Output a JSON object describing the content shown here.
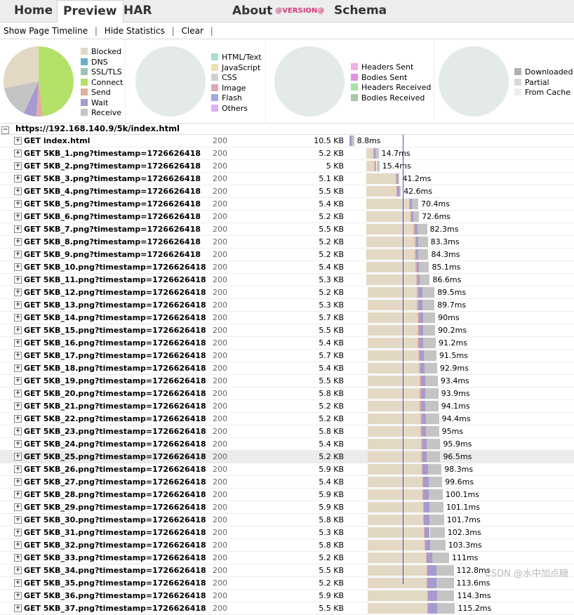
{
  "tabs": {
    "home": "Home",
    "preview": "Preview",
    "har": "HAR",
    "about": "About",
    "version": "@VERSION@",
    "schema": "Schema"
  },
  "toolbar": {
    "timeline": "Show Page Timeline",
    "statistics": "Hide Statistics",
    "clear": "Clear",
    "sep": "|"
  },
  "stats": {
    "timings_legend": [
      "Blocked",
      "DNS",
      "SSL/TLS",
      "Connect",
      "Send",
      "Wait",
      "Receive"
    ],
    "timings_colors": [
      "#e3d8c3",
      "#6ab0c8",
      "#9ec3b4",
      "#b4e168",
      "#e0b0a0",
      "#a89ad0",
      "#c4c4c4"
    ],
    "timings_values": [
      0.28,
      0,
      0,
      0.48,
      0.03,
      0.06,
      0.15
    ],
    "types_legend": [
      "HTML/Text",
      "JavaScript",
      "CSS",
      "Image",
      "Flash",
      "Others"
    ],
    "types_colors": [
      "#a8e0cc",
      "#f0e0b0",
      "#d0d0d0",
      "#e0a8b0",
      "#a0a8e0",
      "#e0b0f0"
    ],
    "headers_legend": [
      "Headers Sent",
      "Bodies Sent",
      "Headers Received",
      "Bodies Received"
    ],
    "headers_colors": [
      "#f4b0e0",
      "#e090e0",
      "#a8e0a8",
      "#a8c8a8"
    ],
    "cache_legend": [
      "Downloaded",
      "Partial",
      "From Cache"
    ],
    "cache_colors": [
      "#b0b0b0",
      "#d8d8d8",
      "#ececec"
    ]
  },
  "page": {
    "title": "https://192.168.140.9/5k/index.html",
    "toggle": "⊟"
  },
  "requests": [
    {
      "url": "GET index.html",
      "status": "200",
      "size": "10.5 KB",
      "time": "8.8ms",
      "start": 0.0,
      "blocked": 0,
      "connect": 0.0,
      "wait": 4,
      "recv": 4
    },
    {
      "url": "GET 5KB_1.png?timestamp=1726626418",
      "status": "200",
      "size": "5.2 KB",
      "time": "14.7ms",
      "start": 24,
      "blocked": 10,
      "wait": 3,
      "recv": 5
    },
    {
      "url": "GET 5KB_2.png?timestamp=1726626418",
      "status": "200",
      "size": "5 KB",
      "time": "15.4ms",
      "start": 24,
      "blocked": 12,
      "wait": 2,
      "recv": 5
    },
    {
      "url": "GET 5KB_3.png?timestamp=1726626418",
      "status": "200",
      "size": "5.1 KB",
      "time": "41.2ms",
      "start": 24,
      "blocked": 44,
      "wait": 2,
      "recv": 3
    },
    {
      "url": "GET 5KB_4.png?timestamp=1726626418",
      "status": "200",
      "size": "5.5 KB",
      "time": "42.6ms",
      "start": 24,
      "blocked": 45,
      "wait": 3,
      "recv": 3
    },
    {
      "url": "GET 5KB_5.png?timestamp=1726626418",
      "status": "200",
      "size": "5.4 KB",
      "time": "70.4ms",
      "start": 24,
      "blocked": 64,
      "wait": 3,
      "recv": 11
    },
    {
      "url": "GET 5KB_6.png?timestamp=1726626418",
      "status": "200",
      "size": "5.2 KB",
      "time": "72.6ms",
      "start": 24,
      "blocked": 66,
      "wait": 3,
      "recv": 10
    },
    {
      "url": "GET 5KB_7.png?timestamp=1726626418",
      "status": "200",
      "size": "5.5 KB",
      "time": "82.3ms",
      "start": 24,
      "blocked": 71,
      "wait": 5,
      "recv": 16
    },
    {
      "url": "GET 5KB_8.png?timestamp=1726626418",
      "status": "200",
      "size": "5.2 KB",
      "time": "83.3ms",
      "start": 24,
      "blocked": 73,
      "wait": 4,
      "recv": 16
    },
    {
      "url": "GET 5KB_9.png?timestamp=1726626418",
      "status": "200",
      "size": "5.2 KB",
      "time": "84.3ms",
      "start": 24,
      "blocked": 73,
      "wait": 4,
      "recv": 17
    },
    {
      "url": "GET 5KB_10.png?timestamp=1726626418",
      "status": "200",
      "size": "5.4 KB",
      "time": "85.1ms",
      "start": 24,
      "blocked": 74,
      "wait": 4,
      "recv": 17
    },
    {
      "url": "GET 5KB_11.png?timestamp=1726626418",
      "status": "200",
      "size": "5.3 KB",
      "time": "86.6ms",
      "start": 24,
      "blocked": 75,
      "wait": 4,
      "recv": 17
    },
    {
      "url": "GET 5KB_12.png?timestamp=1726626418",
      "status": "200",
      "size": "5.2 KB",
      "time": "89.5ms",
      "start": 26,
      "blocked": 74,
      "wait": 8,
      "recv": 20
    },
    {
      "url": "GET 5KB_13.png?timestamp=1726626418",
      "status": "200",
      "size": "5.3 KB",
      "time": "89.7ms",
      "start": 26,
      "blocked": 74,
      "wait": 8,
      "recv": 20
    },
    {
      "url": "GET 5KB_14.png?timestamp=1726626418",
      "status": "200",
      "size": "5.7 KB",
      "time": "90ms",
      "start": 26,
      "blocked": 75,
      "wait": 8,
      "recv": 20
    },
    {
      "url": "GET 5KB_15.png?timestamp=1726626418",
      "status": "200",
      "size": "5.5 KB",
      "time": "90.2ms",
      "start": 26,
      "blocked": 75,
      "wait": 8,
      "recv": 20
    },
    {
      "url": "GET 5KB_16.png?timestamp=1726626418",
      "status": "200",
      "size": "5.4 KB",
      "time": "91.2ms",
      "start": 26,
      "blocked": 75,
      "wait": 8,
      "recv": 21
    },
    {
      "url": "GET 5KB_17.png?timestamp=1726626418",
      "status": "200",
      "size": "5.7 KB",
      "time": "91.5ms",
      "start": 26,
      "blocked": 76,
      "wait": 8,
      "recv": 21
    },
    {
      "url": "GET 5KB_18.png?timestamp=1726626418",
      "status": "200",
      "size": "5.4 KB",
      "time": "92.9ms",
      "start": 26,
      "blocked": 77,
      "wait": 8,
      "recv": 21
    },
    {
      "url": "GET 5KB_19.png?timestamp=1726626418",
      "status": "200",
      "size": "5.5 KB",
      "time": "93.4ms",
      "start": 26,
      "blocked": 78,
      "wait": 8,
      "recv": 21
    },
    {
      "url": "GET 5KB_20.png?timestamp=1726626418",
      "status": "200",
      "size": "5.8 KB",
      "time": "93.9ms",
      "start": 26,
      "blocked": 78,
      "wait": 8,
      "recv": 22
    },
    {
      "url": "GET 5KB_21.png?timestamp=1726626418",
      "status": "200",
      "size": "5.2 KB",
      "time": "94.1ms",
      "start": 26,
      "blocked": 78,
      "wait": 8,
      "recv": 22
    },
    {
      "url": "GET 5KB_22.png?timestamp=1726626418",
      "status": "200",
      "size": "5.2 KB",
      "time": "94.4ms",
      "start": 26,
      "blocked": 79,
      "wait": 8,
      "recv": 22
    },
    {
      "url": "GET 5KB_23.png?timestamp=1726626418",
      "status": "200",
      "size": "5.8 KB",
      "time": "95ms",
      "start": 26,
      "blocked": 79,
      "wait": 8,
      "recv": 22
    },
    {
      "url": "GET 5KB_24.png?timestamp=1726626418",
      "status": "200",
      "size": "5.4 KB",
      "time": "95.9ms",
      "start": 26,
      "blocked": 80,
      "wait": 8,
      "recv": 23
    },
    {
      "url": "GET 5KB_25.png?timestamp=1726626418",
      "status": "200",
      "size": "5.2 KB",
      "time": "96.5ms",
      "start": 26,
      "blocked": 80,
      "wait": 8,
      "recv": 23,
      "hl": true
    },
    {
      "url": "GET 5KB_26.png?timestamp=1726626418",
      "status": "200",
      "size": "5.9 KB",
      "time": "98.3ms",
      "start": 26,
      "blocked": 81,
      "wait": 9,
      "recv": 23
    },
    {
      "url": "GET 5KB_27.png?timestamp=1726626418",
      "status": "200",
      "size": "5.4 KB",
      "time": "99.6ms",
      "start": 26,
      "blocked": 82,
      "wait": 9,
      "recv": 23
    },
    {
      "url": "GET 5KB_28.png?timestamp=1726626418",
      "status": "200",
      "size": "5.9 KB",
      "time": "100.1ms",
      "start": 26,
      "blocked": 82,
      "wait": 9,
      "recv": 24
    },
    {
      "url": "GET 5KB_29.png?timestamp=1726626418",
      "status": "200",
      "size": "5.9 KB",
      "time": "101.1ms",
      "start": 26,
      "blocked": 83,
      "wait": 9,
      "recv": 24
    },
    {
      "url": "GET 5KB_30.png?timestamp=1726626418",
      "status": "200",
      "size": "5.8 KB",
      "time": "101.7ms",
      "start": 26,
      "blocked": 83,
      "wait": 9,
      "recv": 25
    },
    {
      "url": "GET 5KB_31.png?timestamp=1726626418",
      "status": "200",
      "size": "5.3 KB",
      "time": "102.3ms",
      "start": 26,
      "blocked": 84,
      "wait": 9,
      "recv": 25
    },
    {
      "url": "GET 5KB_32.png?timestamp=1726626418",
      "status": "200",
      "size": "5.8 KB",
      "time": "103.3ms",
      "start": 26,
      "blocked": 85,
      "wait": 9,
      "recv": 25
    },
    {
      "url": "GET 5KB_33.png?timestamp=1726626418",
      "status": "200",
      "size": "5.2 KB",
      "time": "111ms",
      "start": 26,
      "blocked": 87,
      "wait": 10,
      "recv": 28
    },
    {
      "url": "GET 5KB_34.png?timestamp=1726626418",
      "status": "200",
      "size": "5.5 KB",
      "time": "112.8ms",
      "start": 26,
      "blocked": 88,
      "wait": 16,
      "recv": 29
    },
    {
      "url": "GET 5KB_35.png?timestamp=1726626418",
      "status": "200",
      "size": "5.2 KB",
      "time": "113.6ms",
      "start": 26,
      "blocked": 88,
      "wait": 16,
      "recv": 29
    },
    {
      "url": "GET 5KB_36.png?timestamp=1726626418",
      "status": "200",
      "size": "5.9 KB",
      "time": "114.3ms",
      "start": 26,
      "blocked": 89,
      "wait": 16,
      "recv": 29
    },
    {
      "url": "GET 5KB_37.png?timestamp=1726626418",
      "status": "200",
      "size": "5.5 KB",
      "time": "115.2ms",
      "start": 26,
      "blocked": 89,
      "wait": 16,
      "recv": 30
    }
  ],
  "watermark": "CSDN @水中加点糖"
}
